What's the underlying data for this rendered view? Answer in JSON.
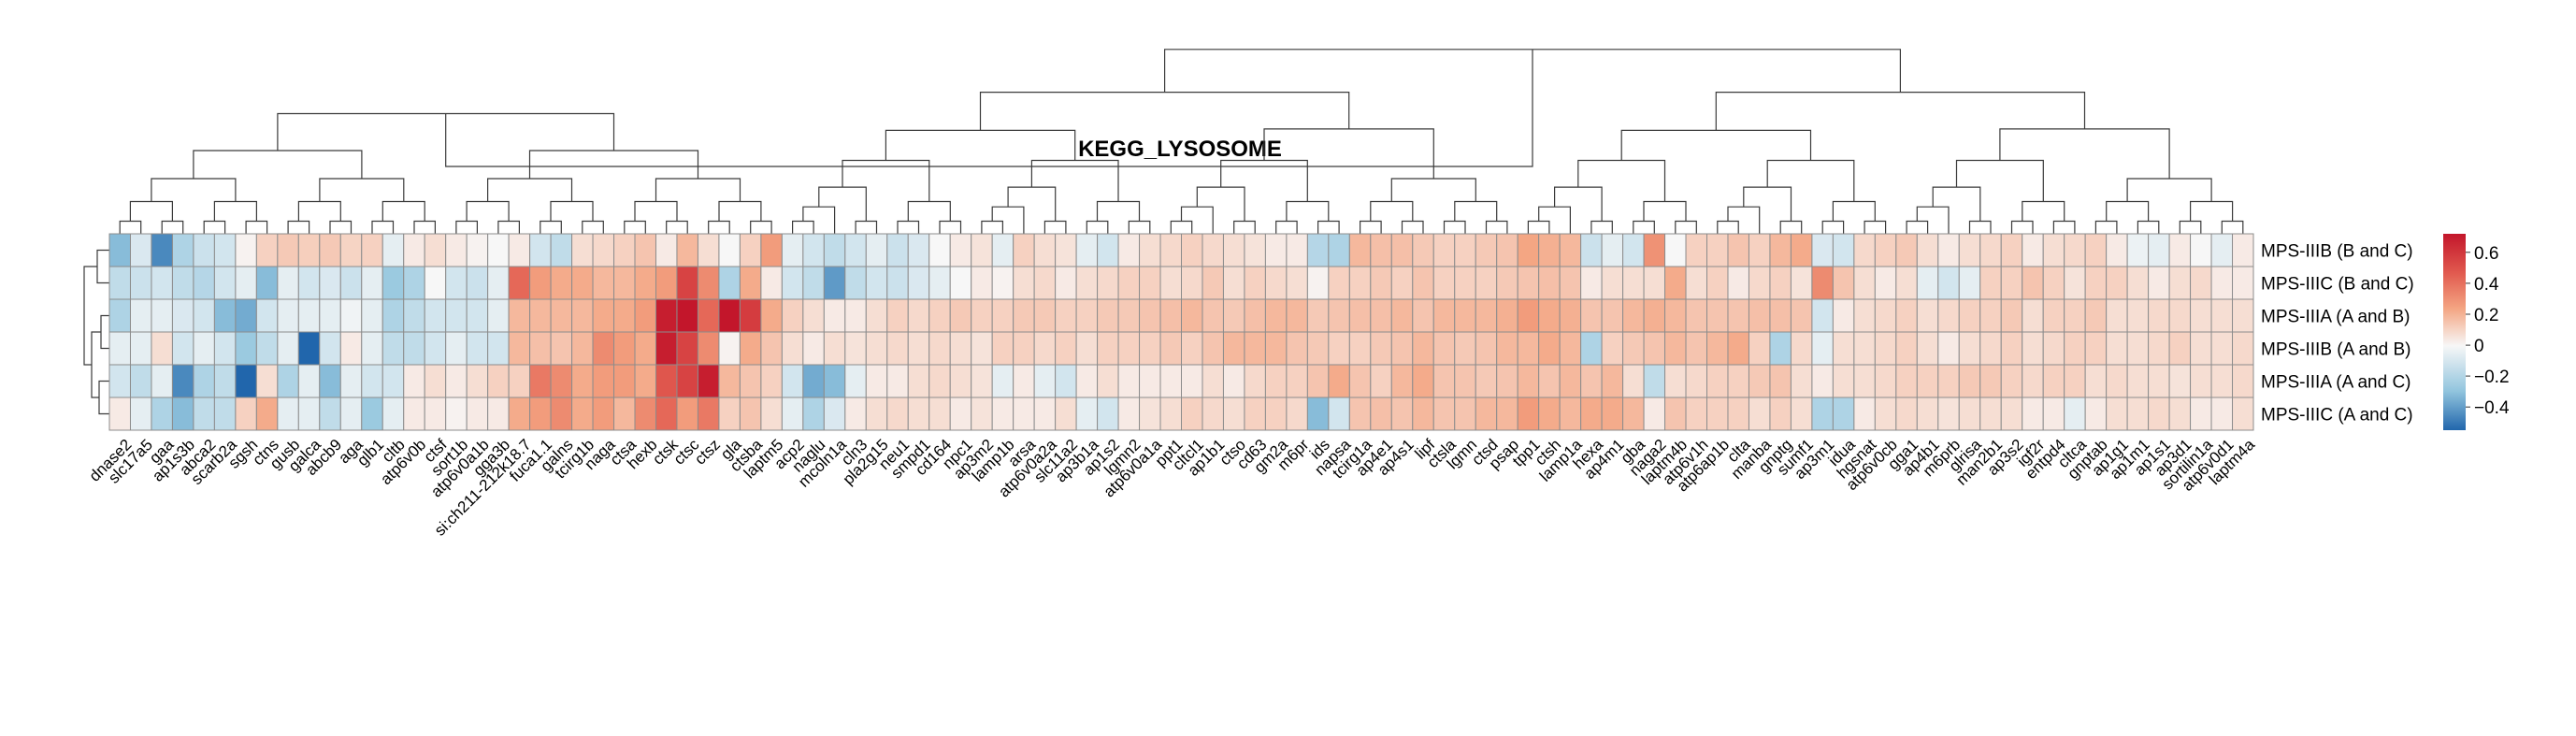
{
  "chart_data": {
    "type": "heatmap",
    "title": "KEGG_LYSOSOME",
    "rows": [
      "MPS-IIIB (B and C)",
      "MPS-IIIC (B and C)",
      "MPS-IIIA (A and B)",
      "MPS-IIIB (A and B)",
      "MPS-IIIA (A and C)",
      "MPS-IIIC (A and C)"
    ],
    "columns": [
      "dnase2",
      "slc17a5",
      "gaa",
      "ap1s3b",
      "abca2",
      "scarb2a",
      "sgsh",
      "ctns",
      "gusb",
      "galca",
      "abcb9",
      "aga",
      "glb1",
      "cltb",
      "atp6v0b",
      "ctsf",
      "sort1b",
      "atp6v0a1b",
      "gga3b",
      "si:ch211-212k18.7",
      "fuca1.1",
      "galns",
      "tcirg1b",
      "naga",
      "ctsa",
      "hexb",
      "ctsk",
      "ctsc",
      "ctsz",
      "gla",
      "ctsba",
      "laptm5",
      "acp2",
      "naglu",
      "mcoln1a",
      "cln3",
      "pla2g15",
      "neu1",
      "smpd1",
      "cd164",
      "npc1",
      "ap3m2",
      "lamp1b",
      "arsa",
      "atp6v0a2a",
      "slc11a2",
      "ap3b1a",
      "ap1s2",
      "lgmn2",
      "atp6v0a1a",
      "ppt1",
      "cltcl1",
      "ap1b1",
      "ctso",
      "cd63",
      "gm2a",
      "m6pr",
      "ids",
      "napsa",
      "tcirg1a",
      "ap4e1",
      "ap4s1",
      "lipf",
      "ctsla",
      "lgmn",
      "ctsd",
      "psap",
      "tpp1",
      "ctsh",
      "lamp1a",
      "hexa",
      "ap4m1",
      "gba",
      "naga2",
      "laptm4b",
      "atp6v1h",
      "atp6ap1b",
      "clta",
      "manba",
      "gnptg",
      "sumf1",
      "ap3m1",
      "idua",
      "hgsnat",
      "atp6v0cb",
      "gga1",
      "ap4b1",
      "m6prb",
      "glrisa",
      "man2b1",
      "ap3s2",
      "igf2r",
      "entpd4",
      "cltca",
      "gnptab",
      "ap1g1",
      "ap1m1",
      "ap1s1",
      "ap3d1",
      "sortilin1a",
      "atp6v0d1",
      "laptm4a"
    ],
    "colorbar": {
      "ticks": [
        0.6,
        0.4,
        0.2,
        0,
        -0.2,
        -0.4
      ],
      "tick_labels": [
        "0.6",
        "0.4",
        "0.2",
        "0",
        "−0.2",
        "−0.4"
      ],
      "range": [
        -0.55,
        0.72
      ]
    },
    "colors": {
      "negative": "#2166ac",
      "neutral": "#f7f7f7",
      "positive": "#c3162b"
    },
    "values": [
      [
        -0.3,
        -0.08,
        -0.45,
        -0.2,
        -0.12,
        -0.1,
        0.02,
        0.15,
        0.18,
        0.16,
        0.18,
        0.14,
        0.15,
        -0.05,
        0.05,
        0.1,
        0.05,
        0.02,
        0.0,
        0.05,
        -0.1,
        -0.15,
        0.1,
        0.12,
        0.15,
        0.2,
        0.05,
        0.25,
        0.1,
        0.0,
        0.15,
        0.35,
        -0.05,
        -0.1,
        -0.15,
        -0.1,
        -0.05,
        -0.12,
        -0.08,
        0.0,
        0.05,
        0.08,
        -0.05,
        0.15,
        0.1,
        0.08,
        -0.05,
        -0.1,
        0.05,
        0.1,
        0.12,
        0.15,
        0.12,
        0.1,
        0.08,
        0.05,
        0.05,
        -0.18,
        -0.2,
        0.25,
        0.22,
        0.22,
        0.18,
        0.15,
        0.15,
        0.18,
        0.2,
        0.32,
        0.28,
        0.25,
        -0.12,
        -0.05,
        -0.1,
        0.38,
        0.0,
        0.15,
        0.15,
        0.2,
        0.15,
        0.25,
        0.3,
        -0.08,
        -0.1,
        0.12,
        0.15,
        0.18,
        0.1,
        0.05,
        0.1,
        0.12,
        0.15,
        0.05,
        0.1,
        0.12,
        0.15,
        0.05,
        -0.03,
        -0.05,
        0.05,
        0.0,
        -0.05,
        0.05
      ],
      [
        -0.15,
        -0.12,
        -0.1,
        -0.15,
        -0.18,
        -0.1,
        -0.05,
        -0.3,
        -0.05,
        -0.1,
        -0.08,
        -0.12,
        -0.05,
        -0.25,
        -0.2,
        0.0,
        -0.1,
        -0.12,
        -0.05,
        0.5,
        0.35,
        0.3,
        0.3,
        0.25,
        0.25,
        0.3,
        0.35,
        0.6,
        0.4,
        -0.2,
        0.3,
        0.05,
        -0.1,
        -0.15,
        -0.4,
        -0.15,
        -0.1,
        -0.12,
        -0.08,
        -0.05,
        0.0,
        0.05,
        0.02,
        0.1,
        0.12,
        0.05,
        0.1,
        0.12,
        0.15,
        0.15,
        0.1,
        0.12,
        0.18,
        0.1,
        0.15,
        0.12,
        0.1,
        0.02,
        0.15,
        0.15,
        0.18,
        0.15,
        0.2,
        0.15,
        0.15,
        0.15,
        0.18,
        0.2,
        0.22,
        0.2,
        0.05,
        0.1,
        0.1,
        0.1,
        0.3,
        0.1,
        0.15,
        0.05,
        0.12,
        0.15,
        0.08,
        0.4,
        0.2,
        0.1,
        0.05,
        0.1,
        -0.05,
        -0.1,
        -0.05,
        0.15,
        0.15,
        0.2,
        0.15,
        0.08,
        0.15,
        0.15,
        0.1,
        0.05,
        0.1,
        0.12,
        0.05,
        0.05
      ],
      [
        -0.2,
        -0.05,
        -0.05,
        -0.08,
        -0.1,
        -0.3,
        -0.35,
        -0.1,
        -0.05,
        -0.05,
        -0.05,
        -0.02,
        -0.05,
        -0.2,
        -0.15,
        -0.1,
        -0.1,
        -0.1,
        -0.05,
        0.25,
        0.25,
        0.25,
        0.25,
        0.3,
        0.3,
        0.35,
        0.7,
        0.72,
        0.5,
        0.72,
        0.62,
        0.3,
        0.15,
        0.1,
        0.05,
        0.05,
        0.1,
        0.15,
        0.12,
        0.15,
        0.18,
        0.15,
        0.15,
        0.18,
        0.18,
        0.15,
        0.15,
        0.18,
        0.18,
        0.2,
        0.22,
        0.25,
        0.2,
        0.18,
        0.22,
        0.25,
        0.25,
        0.18,
        0.2,
        0.22,
        0.22,
        0.25,
        0.2,
        0.25,
        0.25,
        0.25,
        0.28,
        0.35,
        0.3,
        0.28,
        0.2,
        0.2,
        0.25,
        0.28,
        0.25,
        0.2,
        0.2,
        0.2,
        0.22,
        0.22,
        0.2,
        -0.1,
        0.05,
        0.1,
        0.12,
        0.15,
        0.1,
        0.12,
        0.15,
        0.15,
        0.18,
        0.1,
        0.15,
        0.15,
        0.18,
        0.1,
        0.1,
        0.12,
        0.12,
        0.1,
        0.1,
        0.1
      ],
      [
        -0.05,
        -0.05,
        0.1,
        -0.1,
        -0.05,
        -0.1,
        -0.25,
        -0.15,
        -0.05,
        -0.55,
        -0.1,
        0.05,
        -0.05,
        -0.15,
        -0.15,
        -0.1,
        -0.05,
        -0.1,
        -0.1,
        0.25,
        0.22,
        0.2,
        0.25,
        0.4,
        0.35,
        0.3,
        0.7,
        0.6,
        0.4,
        0.02,
        0.3,
        0.2,
        0.1,
        0.05,
        0.1,
        0.08,
        0.1,
        0.12,
        0.1,
        0.12,
        0.1,
        0.08,
        0.15,
        0.15,
        0.12,
        0.15,
        0.1,
        0.15,
        0.15,
        0.15,
        0.18,
        0.15,
        0.2,
        0.25,
        0.25,
        0.25,
        0.2,
        0.18,
        0.15,
        0.15,
        0.18,
        0.2,
        0.25,
        0.2,
        0.18,
        0.2,
        0.25,
        0.25,
        0.3,
        0.25,
        -0.2,
        0.15,
        0.18,
        0.2,
        0.25,
        0.2,
        0.25,
        0.3,
        0.15,
        -0.2,
        0.12,
        -0.05,
        0.1,
        0.1,
        0.12,
        0.15,
        0.1,
        0.05,
        0.1,
        0.12,
        0.15,
        0.1,
        0.12,
        0.15,
        0.15,
        0.1,
        0.1,
        0.12,
        0.15,
        0.1,
        0.1,
        0.12
      ],
      [
        -0.1,
        -0.15,
        -0.05,
        -0.45,
        -0.2,
        -0.15,
        -0.55,
        0.1,
        -0.2,
        -0.05,
        -0.3,
        -0.05,
        -0.1,
        -0.1,
        0.05,
        0.1,
        0.05,
        0.1,
        0.15,
        0.15,
        0.45,
        0.4,
        0.3,
        0.35,
        0.35,
        0.3,
        0.55,
        0.6,
        0.7,
        0.25,
        0.2,
        0.15,
        -0.1,
        -0.35,
        -0.3,
        -0.05,
        0.05,
        0.05,
        0.1,
        0.12,
        0.1,
        0.08,
        -0.05,
        0.05,
        -0.05,
        -0.1,
        0.05,
        0.1,
        0.05,
        0.05,
        0.05,
        0.05,
        0.1,
        0.05,
        0.12,
        0.15,
        0.15,
        0.2,
        0.3,
        0.2,
        0.15,
        0.25,
        0.3,
        0.2,
        0.2,
        0.18,
        0.2,
        0.25,
        0.2,
        0.25,
        0.2,
        0.25,
        0.1,
        -0.15,
        0.1,
        0.12,
        0.15,
        0.15,
        0.18,
        0.2,
        0.1,
        0.05,
        0.1,
        0.1,
        0.12,
        0.15,
        0.15,
        0.15,
        0.18,
        0.18,
        0.15,
        0.12,
        0.15,
        0.15,
        0.1,
        0.12,
        0.1,
        0.1,
        0.08,
        0.1,
        0.1,
        0.12
      ],
      [
        0.05,
        -0.05,
        -0.2,
        -0.3,
        -0.15,
        -0.15,
        0.15,
        0.3,
        -0.05,
        -0.05,
        -0.15,
        -0.05,
        -0.25,
        -0.05,
        0.05,
        0.05,
        0.02,
        0.05,
        0.05,
        0.3,
        0.35,
        0.4,
        0.3,
        0.35,
        0.25,
        0.4,
        0.5,
        0.35,
        0.45,
        0.15,
        0.2,
        0.1,
        -0.05,
        -0.2,
        -0.08,
        0.05,
        0.1,
        0.12,
        0.1,
        0.1,
        0.05,
        0.08,
        0.05,
        0.05,
        0.05,
        0.1,
        -0.05,
        -0.1,
        0.05,
        0.08,
        0.1,
        0.15,
        0.12,
        0.1,
        0.15,
        0.15,
        0.12,
        -0.3,
        -0.1,
        0.2,
        0.22,
        0.2,
        0.25,
        0.2,
        0.2,
        0.25,
        0.25,
        0.35,
        0.3,
        0.25,
        0.3,
        0.3,
        0.25,
        0.05,
        0.2,
        0.15,
        0.15,
        0.15,
        0.1,
        0.15,
        0.1,
        -0.2,
        -0.2,
        0.05,
        0.1,
        0.12,
        0.1,
        0.08,
        0.1,
        0.1,
        0.1,
        0.05,
        0.05,
        -0.05,
        0.05,
        0.1,
        0.1,
        0.12,
        0.1,
        0.05,
        0.05,
        0.1
      ]
    ]
  }
}
